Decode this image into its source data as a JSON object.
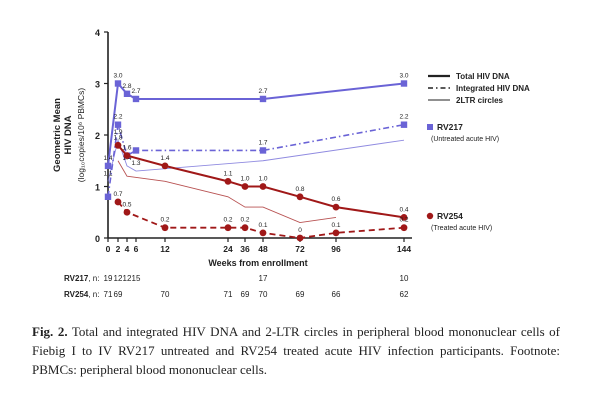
{
  "chart_data": {
    "type": "line",
    "ylabel_line1": "Geometric Mean",
    "ylabel_line2": "HIV DNA",
    "ylabel_units": "(log₁₀copies/10⁶ PBMCs)",
    "xlabel": "Weeks from enrollment",
    "ylim": [
      0,
      4
    ],
    "yticks": [
      0,
      1,
      2,
      3,
      4
    ],
    "xticks": [
      0,
      2,
      4,
      6,
      12,
      24,
      36,
      48,
      72,
      96,
      144
    ],
    "legend": {
      "position": "top-right",
      "items": [
        {
          "label": "Total HIV DNA",
          "style": "solid-thick"
        },
        {
          "label": "Integrated HIV DNA",
          "style": "dash-dot"
        },
        {
          "label": "2LTR circles",
          "style": "solid-thin"
        }
      ]
    },
    "groups": [
      {
        "name": "RV217",
        "subtitle": "(Untreated acute HIV)",
        "color": "#6a63d6",
        "marker": "square"
      },
      {
        "name": "RV254",
        "subtitle": "(Treated acute HIV)",
        "color": "#a01818",
        "marker": "circle"
      }
    ],
    "series": [
      {
        "group": "RV217",
        "kind": "total",
        "x": [
          0,
          2,
          4,
          6,
          48,
          144
        ],
        "y": [
          1.4,
          3.0,
          2.8,
          2.7,
          2.7,
          3.0
        ],
        "labels": [
          "1.4",
          "3.0",
          "2.8",
          "2.7",
          "2.7",
          "3.0"
        ]
      },
      {
        "group": "RV217",
        "kind": "integrated",
        "x": [
          0,
          2,
          4,
          6,
          48,
          144
        ],
        "y": [
          0.8,
          2.2,
          1.6,
          1.7,
          1.7,
          2.2
        ],
        "labels": [
          "",
          "2.2",
          "1.6",
          "",
          "1.7",
          "2.2"
        ]
      },
      {
        "group": "RV217",
        "kind": "2ltr",
        "x": [
          0,
          2,
          4,
          6,
          48,
          144
        ],
        "y": [
          1.1,
          1.9,
          1.4,
          1.3,
          1.5,
          1.9
        ],
        "labels": [
          "1.1",
          "1.9",
          "1.4",
          "1.3",
          "",
          ""
        ]
      },
      {
        "group": "RV254",
        "kind": "total",
        "x": [
          2,
          4,
          12,
          24,
          36,
          48,
          72,
          96,
          144
        ],
        "y": [
          1.8,
          1.6,
          1.4,
          1.1,
          1.0,
          1.0,
          0.8,
          0.6,
          0.4
        ],
        "labels": [
          "1.8",
          "",
          "1.4",
          "1.1",
          "1.0",
          "1.0",
          "0.8",
          "0.6",
          "0.4"
        ]
      },
      {
        "group": "RV254",
        "kind": "integrated",
        "x": [
          2,
          4,
          12,
          24,
          36,
          48,
          72,
          96,
          144
        ],
        "y": [
          0.7,
          0.5,
          0.2,
          0.2,
          0.2,
          0.1,
          0.0,
          0.1,
          0.2
        ],
        "labels": [
          "0.7",
          "0.5",
          "0.2",
          "0.2",
          "0.2",
          "0.1",
          "0",
          "0.1",
          "0.2"
        ]
      },
      {
        "group": "RV254",
        "kind": "2ltr",
        "x": [
          2,
          4,
          12,
          24,
          36,
          48,
          72,
          96
        ],
        "y": [
          1.5,
          1.2,
          1.1,
          0.8,
          0.6,
          0.6,
          0.3,
          0.4
        ],
        "labels": []
      }
    ],
    "sample_sizes": [
      {
        "label_name": "RV217",
        "label_rest": ", n:",
        "cells": [
          {
            "x": 0,
            "v": "19"
          },
          {
            "x": 2,
            "v": "12"
          },
          {
            "x": 4,
            "v": "12"
          },
          {
            "x": 6,
            "v": "15"
          },
          {
            "x": 48,
            "v": "17"
          },
          {
            "x": 144,
            "v": "10"
          }
        ]
      },
      {
        "label_name": "RV254",
        "label_rest": ", n:",
        "cells": [
          {
            "x": 0,
            "v": "71"
          },
          {
            "x": 2,
            "v": "69"
          },
          {
            "x": 12,
            "v": "70"
          },
          {
            "x": 24,
            "v": "71"
          },
          {
            "x": 36,
            "v": "69"
          },
          {
            "x": 48,
            "v": "70"
          },
          {
            "x": 72,
            "v": "69"
          },
          {
            "x": 96,
            "v": "66"
          },
          {
            "x": 144,
            "v": "62"
          }
        ]
      }
    ]
  },
  "caption": {
    "prefix": "Fig. 2.",
    "text": " Total and integrated HIV DNA and 2-LTR circles in peripheral blood mononuclear cells of Fiebig I to IV RV217 untreated and RV254 treated acute HIV infection participants. Footnote: PBMCs: peripheral blood mononuclear cells."
  }
}
